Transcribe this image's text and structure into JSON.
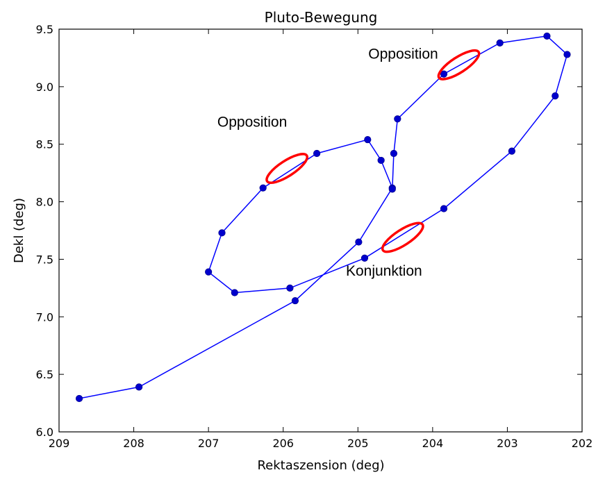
{
  "chart_data": {
    "type": "line",
    "title": "Pluto-Bewegung",
    "xlabel": "Rektaszension (deg)",
    "ylabel": "Dekl (deg)",
    "xlim": [
      209,
      202
    ],
    "ylim": [
      6.0,
      9.5
    ],
    "x_inverted": true,
    "xticks": [
      209,
      208,
      207,
      206,
      205,
      204,
      203,
      202
    ],
    "yticks": [
      "6.0",
      "6.5",
      "7.0",
      "7.5",
      "8.0",
      "8.5",
      "9.0",
      "9.5"
    ],
    "grid": false,
    "line_color": "#0000ff",
    "marker_color": "#0000cc",
    "series": [
      {
        "x": [
          208.73,
          207.93,
          205.84,
          204.99,
          204.54,
          204.69,
          204.87,
          205.55,
          206.27,
          206.82,
          207.0,
          206.65,
          205.91,
          204.91,
          203.85,
          202.94,
          202.36,
          202.2,
          202.47,
          203.1,
          203.85,
          204.47,
          204.52,
          204.54
        ],
        "y": [
          6.29,
          6.39,
          7.14,
          7.65,
          8.12,
          8.36,
          8.54,
          8.42,
          8.12,
          7.73,
          7.39,
          7.21,
          7.25,
          7.51,
          7.94,
          8.44,
          8.92,
          9.28,
          9.44,
          9.38,
          9.11,
          8.72,
          8.42,
          8.11
        ]
      }
    ],
    "annotations": [
      {
        "text": "Opposition",
        "x": 205.95,
        "y": 8.29,
        "marker": "red-ellipse"
      },
      {
        "text": "Opposition",
        "x": 203.65,
        "y": 9.19,
        "marker": "red-ellipse"
      },
      {
        "text": "Konjunktion",
        "x": 204.4,
        "y": 7.69,
        "marker": "red-ellipse"
      }
    ],
    "annotation_color": "#ff0000"
  }
}
